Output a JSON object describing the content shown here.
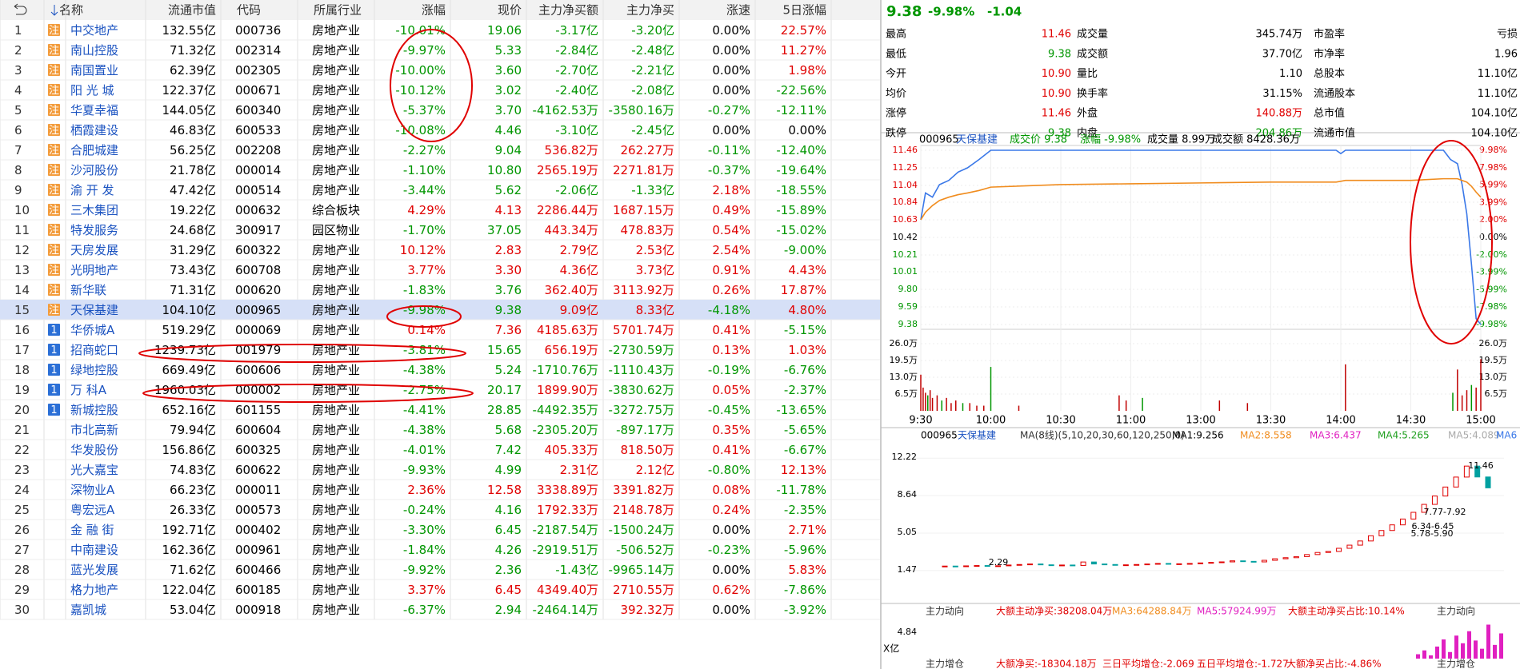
{
  "table": {
    "columns": [
      "名称",
      "流通市值",
      "代码",
      "所属行业",
      "涨幅",
      "现价",
      "主力净买额",
      "主力净买",
      "涨速",
      "5日涨幅"
    ],
    "rows": [
      {
        "no": "1",
        "badge": "注",
        "cells": [
          "中交地产",
          "132.55亿",
          "000736",
          "房地产业",
          "-10.01%",
          "19.06",
          "-3.17亿",
          "-3.20亿",
          "0.00%",
          "22.57%"
        ]
      },
      {
        "no": "2",
        "badge": "注",
        "cells": [
          "南山控股",
          "71.32亿",
          "002314",
          "房地产业",
          "-9.97%",
          "5.33",
          "-2.84亿",
          "-2.48亿",
          "0.00%",
          "11.27%"
        ]
      },
      {
        "no": "3",
        "badge": "注",
        "cells": [
          "南国置业",
          "62.39亿",
          "002305",
          "房地产业",
          "-10.00%",
          "3.60",
          "-2.70亿",
          "-2.21亿",
          "0.00%",
          "1.98%"
        ]
      },
      {
        "no": "4",
        "badge": "注",
        "cells": [
          "阳 光 城",
          "122.37亿",
          "000671",
          "房地产业",
          "-10.12%",
          "3.02",
          "-2.40亿",
          "-2.08亿",
          "0.00%",
          "-22.56%"
        ]
      },
      {
        "no": "5",
        "badge": "注",
        "cells": [
          "华夏幸福",
          "144.05亿",
          "600340",
          "房地产业",
          "-5.37%",
          "3.70",
          "-4162.53万",
          "-3580.16万",
          "-0.27%",
          "-12.11%"
        ]
      },
      {
        "no": "6",
        "badge": "注",
        "cells": [
          "栖霞建设",
          "46.83亿",
          "600533",
          "房地产业",
          "-10.08%",
          "4.46",
          "-3.10亿",
          "-2.45亿",
          "0.00%",
          "0.00%"
        ]
      },
      {
        "no": "7",
        "badge": "注",
        "cells": [
          "合肥城建",
          "56.25亿",
          "002208",
          "房地产业",
          "-2.27%",
          "9.04",
          "536.82万",
          "262.27万",
          "-0.11%",
          "-12.40%"
        ]
      },
      {
        "no": "8",
        "badge": "注",
        "cells": [
          "沙河股份",
          "21.78亿",
          "000014",
          "房地产业",
          "-1.10%",
          "10.80",
          "2565.19万",
          "2271.81万",
          "-0.37%",
          "-19.64%"
        ]
      },
      {
        "no": "9",
        "badge": "注",
        "cells": [
          "渝 开 发",
          "47.42亿",
          "000514",
          "房地产业",
          "-3.44%",
          "5.62",
          "-2.06亿",
          "-1.33亿",
          "2.18%",
          "-18.55%"
        ]
      },
      {
        "no": "10",
        "badge": "注",
        "cells": [
          "三木集团",
          "19.22亿",
          "000632",
          "综合板块",
          "4.29%",
          "4.13",
          "2286.44万",
          "1687.15万",
          "0.49%",
          "-15.89%"
        ]
      },
      {
        "no": "11",
        "badge": "注",
        "cells": [
          "特发服务",
          "24.68亿",
          "300917",
          "园区物业",
          "-1.70%",
          "37.05",
          "443.34万",
          "478.83万",
          "0.54%",
          "-15.02%"
        ]
      },
      {
        "no": "12",
        "badge": "注",
        "cells": [
          "天房发展",
          "31.29亿",
          "600322",
          "房地产业",
          "10.12%",
          "2.83",
          "2.79亿",
          "2.53亿",
          "2.54%",
          "-9.00%"
        ]
      },
      {
        "no": "13",
        "badge": "注",
        "cells": [
          "光明地产",
          "73.43亿",
          "600708",
          "房地产业",
          "3.77%",
          "3.30",
          "4.36亿",
          "3.73亿",
          "0.91%",
          "4.43%"
        ]
      },
      {
        "no": "14",
        "badge": "注",
        "cells": [
          "新华联",
          "71.31亿",
          "000620",
          "房地产业",
          "-1.83%",
          "3.76",
          "362.40万",
          "3113.92万",
          "0.26%",
          "17.87%"
        ]
      },
      {
        "no": "15",
        "badge": "注",
        "cells": [
          "天保基建",
          "104.10亿",
          "000965",
          "房地产业",
          "-9.98%",
          "9.38",
          "9.09亿",
          "8.33亿",
          "-4.18%",
          "4.80%"
        ]
      },
      {
        "no": "16",
        "badge": "1",
        "cells": [
          "华侨城A",
          "519.29亿",
          "000069",
          "房地产业",
          "0.14%",
          "7.36",
          "4185.63万",
          "5701.74万",
          "0.41%",
          "-5.15%"
        ]
      },
      {
        "no": "17",
        "badge": "1",
        "cells": [
          "招商蛇口",
          "1239.73亿",
          "001979",
          "房地产业",
          "-3.81%",
          "15.65",
          "656.19万",
          "-2730.59万",
          "0.13%",
          "1.03%"
        ]
      },
      {
        "no": "18",
        "badge": "1",
        "cells": [
          "绿地控股",
          "669.49亿",
          "600606",
          "房地产业",
          "-4.38%",
          "5.24",
          "-1710.76万",
          "-1110.43万",
          "-0.19%",
          "-6.76%"
        ]
      },
      {
        "no": "19",
        "badge": "1",
        "cells": [
          "万 科A",
          "1960.03亿",
          "000002",
          "房地产业",
          "-2.75%",
          "20.17",
          "1899.90万",
          "-3830.62万",
          "0.05%",
          "-2.37%"
        ]
      },
      {
        "no": "20",
        "badge": "1",
        "cells": [
          "新城控股",
          "652.16亿",
          "601155",
          "房地产业",
          "-4.41%",
          "28.85",
          "-4492.35万",
          "-3272.75万",
          "-0.45%",
          "-13.65%"
        ]
      },
      {
        "no": "21",
        "cells": [
          "市北高新",
          "79.94亿",
          "600604",
          "房地产业",
          "-4.38%",
          "5.68",
          "-2305.20万",
          "-897.17万",
          "0.35%",
          "-5.65%"
        ]
      },
      {
        "no": "22",
        "cells": [
          "华发股份",
          "156.86亿",
          "600325",
          "房地产业",
          "-4.01%",
          "7.42",
          "405.33万",
          "818.50万",
          "0.41%",
          "-6.67%"
        ]
      },
      {
        "no": "23",
        "cells": [
          "光大嘉宝",
          "74.83亿",
          "600622",
          "房地产业",
          "-9.93%",
          "4.99",
          "2.31亿",
          "2.12亿",
          "-0.80%",
          "12.13%"
        ]
      },
      {
        "no": "24",
        "cells": [
          "深物业A",
          "66.23亿",
          "000011",
          "房地产业",
          "2.36%",
          "12.58",
          "3338.89万",
          "3391.82万",
          "0.08%",
          "-11.78%"
        ]
      },
      {
        "no": "25",
        "cells": [
          "粤宏远A",
          "26.33亿",
          "000573",
          "房地产业",
          "-0.24%",
          "4.16",
          "1792.33万",
          "2148.78万",
          "0.24%",
          "-2.35%"
        ]
      },
      {
        "no": "26",
        "cells": [
          "金 融 街",
          "192.71亿",
          "000402",
          "房地产业",
          "-3.30%",
          "6.45",
          "-2187.54万",
          "-1500.24万",
          "0.00%",
          "2.71%"
        ]
      },
      {
        "no": "27",
        "cells": [
          "中南建设",
          "162.36亿",
          "000961",
          "房地产业",
          "-1.84%",
          "4.26",
          "-2919.51万",
          "-506.52万",
          "-0.23%",
          "-5.96%"
        ]
      },
      {
        "no": "28",
        "cells": [
          "蓝光发展",
          "71.62亿",
          "600466",
          "房地产业",
          "-9.92%",
          "2.36",
          "-1.43亿",
          "-9965.14万",
          "0.00%",
          "5.83%"
        ]
      },
      {
        "no": "29",
        "cells": [
          "格力地产",
          "122.04亿",
          "600185",
          "房地产业",
          "3.37%",
          "6.45",
          "4349.40万",
          "2710.55万",
          "0.62%",
          "-7.86%"
        ]
      },
      {
        "no": "30",
        "cells": [
          "嘉凯城",
          "53.04亿",
          "000918",
          "房地产业",
          "-6.37%",
          "2.94",
          "-2464.14万",
          "392.32万",
          "0.00%",
          "-3.92%"
        ]
      }
    ]
  },
  "quote": {
    "price": "9.38",
    "change_pct": "-9.98%",
    "change": "-1.04",
    "color": "#009600",
    "stats": [
      {
        "label": "最高",
        "value": "11.46",
        "color": "#e00000"
      },
      {
        "label": "最低",
        "value": "9.38",
        "color": "#009600"
      },
      {
        "label": "今开",
        "value": "10.90",
        "color": "#e00000"
      },
      {
        "label": "均价",
        "value": "10.90",
        "color": "#e00000"
      },
      {
        "label": "涨停",
        "value": "11.46",
        "color": "#e00000"
      },
      {
        "label": "跌停",
        "value": "9.38",
        "color": "#009600"
      },
      {
        "label": "成交量",
        "value": "345.74万",
        "color": "#000000"
      },
      {
        "label": "成交额",
        "value": "37.70亿",
        "color": "#000000"
      },
      {
        "label": "量比",
        "value": "1.10",
        "color": "#000000"
      },
      {
        "label": "换手率",
        "value": "31.15%",
        "color": "#000000"
      },
      {
        "label": "外盘",
        "value": "140.88万",
        "color": "#e00000"
      },
      {
        "label": "内盘",
        "value": "204.86万",
        "color": "#009600"
      },
      {
        "label": "市盈率",
        "value": "亏损",
        "color": "#000000"
      },
      {
        "label": "市净率",
        "value": "1.96",
        "color": "#000000"
      },
      {
        "label": "总股本",
        "value": "11.10亿",
        "color": "#000000"
      },
      {
        "label": "流通股本",
        "value": "11.10亿",
        "color": "#000000"
      },
      {
        "label": "总市值",
        "value": "104.10亿",
        "color": "#000000"
      },
      {
        "label": "流通市值",
        "value": "104.10亿",
        "color": "#000000"
      }
    ]
  },
  "chart_data": [
    {
      "type": "line",
      "header": [
        "000965",
        "天保基建",
        "成交价 9.38",
        "涨幅 -9.98%",
        "成交量 8.99万",
        "成交额 8428.36万"
      ],
      "x": [
        "9:30",
        "9:32",
        "9:35",
        "9:38",
        "9:42",
        "9:46",
        "9:50",
        "9:55",
        "10:00",
        "10:30",
        "11:00",
        "11:30",
        "13:30",
        "13:58",
        "14:00",
        "14:02",
        "14:30",
        "14:44",
        "14:47",
        "14:50",
        "14:52",
        "14:54",
        "14:56",
        "14:58",
        "15:00"
      ],
      "series": [
        {
          "name": "价格",
          "color": "#3a78e8",
          "values": [
            10.63,
            10.95,
            10.9,
            11.05,
            11.1,
            11.2,
            11.25,
            11.35,
            11.46,
            11.46,
            11.46,
            11.46,
            11.46,
            11.46,
            11.42,
            11.46,
            11.46,
            11.46,
            11.35,
            11.3,
            11.05,
            10.7,
            10.1,
            9.45,
            9.38
          ]
        },
        {
          "name": "均价",
          "color": "#f08c1e",
          "values": [
            10.63,
            10.72,
            10.8,
            10.86,
            10.9,
            10.93,
            10.95,
            10.98,
            11.02,
            11.05,
            11.06,
            11.07,
            11.08,
            11.08,
            11.09,
            11.1,
            11.1,
            11.12,
            11.12,
            11.12,
            11.1,
            11.08,
            11.03,
            10.96,
            10.9
          ]
        }
      ],
      "ylim": [
        9.38,
        11.46
      ],
      "yticks": [
        {
          "value": 11.46,
          "label": "11.46"
        },
        {
          "value": 11.25,
          "label": "11.25"
        },
        {
          "value": 11.04,
          "label": "11.04"
        },
        {
          "value": 10.84,
          "label": "10.84"
        },
        {
          "value": 10.63,
          "label": "10.63"
        },
        {
          "value": 10.42,
          "label": "10.42"
        },
        {
          "value": 10.21,
          "label": "10.21"
        },
        {
          "value": 10.01,
          "label": "10.01"
        },
        {
          "value": 9.8,
          "label": "9.80"
        },
        {
          "value": 9.59,
          "label": "9.59"
        },
        {
          "value": 9.38,
          "label": "9.38"
        }
      ],
      "y2lim": [
        -9.98,
        9.98
      ],
      "y2ticks": [
        {
          "value": 9.98,
          "label": "9.98%"
        },
        {
          "value": 7.98,
          "label": "7.98%"
        },
        {
          "value": 5.99,
          "label": "5.99%"
        },
        {
          "value": 3.99,
          "label": "3.99%"
        },
        {
          "value": 2.0,
          "label": "2.00%"
        },
        {
          "value": 0,
          "label": "0.00%"
        },
        {
          "value": -2.0,
          "label": "-2.00%"
        },
        {
          "value": -3.99,
          "label": "-3.99%"
        },
        {
          "value": -5.99,
          "label": "-5.99%"
        },
        {
          "value": -7.98,
          "label": "-7.98%"
        },
        {
          "value": -9.98,
          "label": "-9.98%"
        }
      ],
      "xticks": [
        "9:30",
        "10:00",
        "10:30",
        "11:00",
        "13:00",
        "13:30",
        "14:00",
        "14:30",
        "15:00"
      ],
      "volume": {
        "color": "#c00000",
        "x": [
          "9:30",
          "9:31",
          "9:32",
          "9:33",
          "9:34",
          "9:35",
          "9:37",
          "9:39",
          "9:41",
          "9:43",
          "9:45",
          "9:48",
          "9:51",
          "9:54",
          "9:57",
          "10:00",
          "10:12",
          "10:55",
          "10:58",
          "11:05",
          "13:08",
          "13:20",
          "14:02",
          "14:48",
          "14:50",
          "14:52",
          "14:54",
          "14:56",
          "14:58",
          "15:00"
        ],
        "values": [
          14,
          9,
          7,
          6,
          8,
          5,
          6,
          4,
          5,
          3,
          4,
          3,
          3,
          2,
          2,
          17,
          2,
          6,
          4,
          5,
          4,
          3,
          18,
          7,
          16,
          6,
          8,
          10,
          9,
          20
        ],
        "ylim": [
          0,
          26
        ],
        "yticks": [
          {
            "value": 26,
            "label": "26.0万"
          },
          {
            "value": 19.5,
            "label": "19.5万"
          },
          {
            "value": 13,
            "label": "13.0万"
          },
          {
            "value": 6.5,
            "label": "6.5万"
          }
        ]
      }
    },
    {
      "type": "line",
      "header": [
        "000965",
        "天保基建",
        "MA(8线)(5,10,20,30,60,120,250,0)",
        "MA1:9.256",
        "MA2:8.558",
        "MA3:6.437",
        "MA4:5.265",
        "MA5:4.089",
        "MA6"
      ],
      "header_colors": [
        "#000000",
        "#1a52c0",
        "#333333",
        "#000000",
        "#f08c1e",
        "#e020c0",
        "#20a020",
        "#aaaaaa",
        "#3a78e8"
      ],
      "series": [
        {
          "name": "K",
          "color": "#e00000",
          "values": [
            1.9,
            1.88,
            1.92,
            1.95,
            1.9,
            1.93,
            2.0,
            2.05,
            2.1,
            2.02,
            1.98,
            2.0,
            1.95,
            2.29,
            2.1,
            2.05,
            2.0,
            2.02,
            2.05,
            2.1,
            2.15,
            2.1,
            2.12,
            2.15,
            2.2,
            2.25,
            2.3,
            2.4,
            2.35,
            2.3,
            2.45,
            2.6,
            2.7,
            2.8,
            3.0,
            3.2,
            3.3,
            3.6,
            3.9,
            4.3,
            4.8,
            5.3,
            5.84,
            6.4,
            7.04,
            7.8,
            8.6,
            9.46,
            10.41,
            11.46,
            10.42,
            9.38
          ]
        }
      ],
      "ylim": [
        1.0,
        13.0
      ],
      "yticks": [
        12.22,
        8.64,
        5.05,
        1.47
      ],
      "annotations": [
        "11.46",
        "7.77-7.92",
        "6.34-6.45",
        "5.78-5.90",
        "2.29"
      ]
    },
    {
      "type": "bar",
      "header": [
        "主力动向",
        "大额主动净买:38208.04万",
        "MA3:64288.84万",
        "MA5:57924.99万",
        "大额主动净买占比:10.14%"
      ],
      "header_colors": [
        "#333333",
        "#e00000",
        "#f08c1e",
        "#e020c0",
        "#e00000"
      ],
      "right_label": "主力动向",
      "unit": "X亿",
      "color": "#e020c0",
      "values": [
        0.8,
        1.5,
        0.6,
        2.2,
        3.5,
        1.2,
        4.2,
        2.8,
        5.0,
        3.3,
        1.8,
        6.2,
        2.5,
        4.6
      ],
      "ylim": [
        0,
        7
      ],
      "yticks": [
        4.84
      ],
      "footer": [
        "主力增仓",
        "大额净买:-18304.18万",
        "三日平均增仓:-2.069",
        "五日平均增仓:-1.727",
        "大额净买占比:-4.86%"
      ],
      "footer_colors": [
        "#333333",
        "#e00000",
        "#e00000",
        "#e00000",
        "#e00000"
      ],
      "footer_right": "主力增仓"
    }
  ]
}
